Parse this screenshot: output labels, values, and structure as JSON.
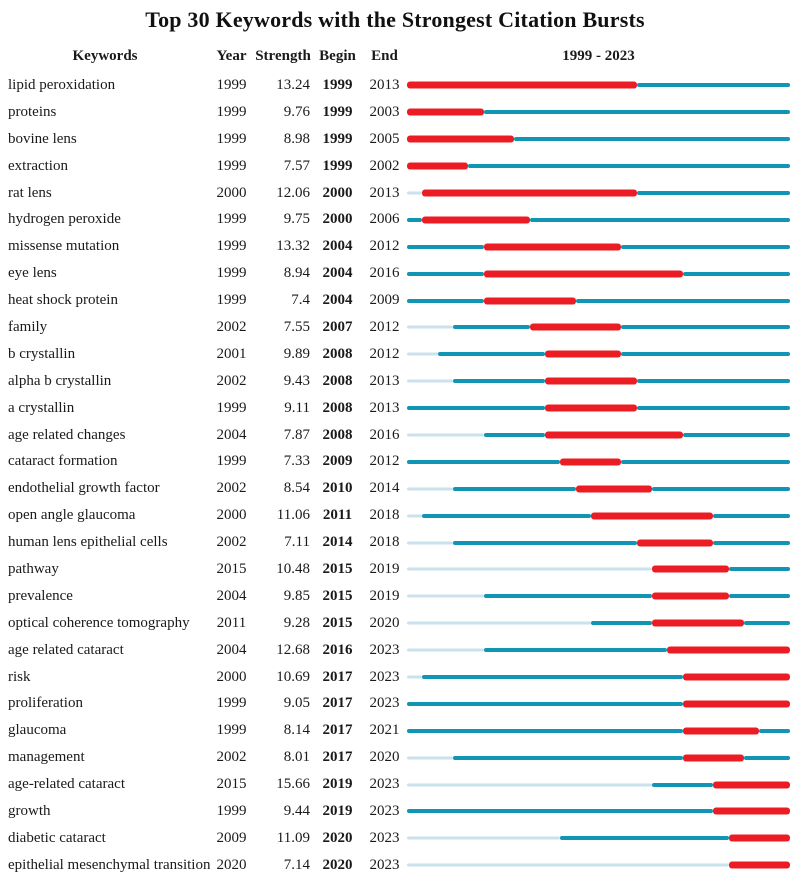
{
  "title": "Top 30 Keywords with the Strongest Citation Bursts",
  "columns": {
    "keywords": "Keywords",
    "year": "Year",
    "strength": "Strength",
    "begin": "Begin",
    "end": "End",
    "timeline": "1999 - 2023"
  },
  "colors": {
    "burst": "#ec1c24",
    "active": "#1095b5",
    "inactive": "#c9e2ec"
  },
  "chart_data": {
    "type": "table",
    "title": "Top 30 Keywords with the Strongest Citation Bursts",
    "columns": [
      "Keywords",
      "Year",
      "Strength",
      "Begin",
      "End",
      "1999 - 2023"
    ],
    "timeline_range": [
      1999,
      2023
    ],
    "legend": {
      "burst_color_meaning": "citation burst period (Begin–End)",
      "active_color_meaning": "keyword active, no burst",
      "inactive_color_meaning": "before keyword first appearance"
    },
    "rows": [
      {
        "keyword": "lipid peroxidation",
        "year": 1999,
        "strength": "13.24",
        "begin": 1999,
        "end": 2013
      },
      {
        "keyword": "proteins",
        "year": 1999,
        "strength": "9.76",
        "begin": 1999,
        "end": 2003
      },
      {
        "keyword": "bovine lens",
        "year": 1999,
        "strength": "8.98",
        "begin": 1999,
        "end": 2005
      },
      {
        "keyword": "extraction",
        "year": 1999,
        "strength": "7.57",
        "begin": 1999,
        "end": 2002
      },
      {
        "keyword": "rat lens",
        "year": 2000,
        "strength": "12.06",
        "begin": 2000,
        "end": 2013
      },
      {
        "keyword": "hydrogen peroxide",
        "year": 1999,
        "strength": "9.75",
        "begin": 2000,
        "end": 2006
      },
      {
        "keyword": "missense mutation",
        "year": 1999,
        "strength": "13.32",
        "begin": 2004,
        "end": 2012
      },
      {
        "keyword": "eye lens",
        "year": 1999,
        "strength": "8.94",
        "begin": 2004,
        "end": 2016
      },
      {
        "keyword": "heat shock protein",
        "year": 1999,
        "strength": "7.4",
        "begin": 2004,
        "end": 2009
      },
      {
        "keyword": "family",
        "year": 2002,
        "strength": "7.55",
        "begin": 2007,
        "end": 2012
      },
      {
        "keyword": "b crystallin",
        "year": 2001,
        "strength": "9.89",
        "begin": 2008,
        "end": 2012
      },
      {
        "keyword": "alpha b crystallin",
        "year": 2002,
        "strength": "9.43",
        "begin": 2008,
        "end": 2013
      },
      {
        "keyword": "a crystallin",
        "year": 1999,
        "strength": "9.11",
        "begin": 2008,
        "end": 2013
      },
      {
        "keyword": "age related changes",
        "year": 2004,
        "strength": "7.87",
        "begin": 2008,
        "end": 2016
      },
      {
        "keyword": "cataract formation",
        "year": 1999,
        "strength": "7.33",
        "begin": 2009,
        "end": 2012
      },
      {
        "keyword": "endothelial growth factor",
        "year": 2002,
        "strength": "8.54",
        "begin": 2010,
        "end": 2014
      },
      {
        "keyword": "open angle glaucoma",
        "year": 2000,
        "strength": "11.06",
        "begin": 2011,
        "end": 2018
      },
      {
        "keyword": "human lens epithelial cells",
        "year": 2002,
        "strength": "7.11",
        "begin": 2014,
        "end": 2018
      },
      {
        "keyword": "pathway",
        "year": 2015,
        "strength": "10.48",
        "begin": 2015,
        "end": 2019
      },
      {
        "keyword": "prevalence",
        "year": 2004,
        "strength": "9.85",
        "begin": 2015,
        "end": 2019
      },
      {
        "keyword": "optical coherence tomography",
        "year": 2011,
        "strength": "9.28",
        "begin": 2015,
        "end": 2020
      },
      {
        "keyword": "age related cataract",
        "year": 2004,
        "strength": "12.68",
        "begin": 2016,
        "end": 2023
      },
      {
        "keyword": "risk",
        "year": 2000,
        "strength": "10.69",
        "begin": 2017,
        "end": 2023
      },
      {
        "keyword": "proliferation",
        "year": 1999,
        "strength": "9.05",
        "begin": 2017,
        "end": 2023
      },
      {
        "keyword": "glaucoma",
        "year": 1999,
        "strength": "8.14",
        "begin": 2017,
        "end": 2021
      },
      {
        "keyword": "management",
        "year": 2002,
        "strength": "8.01",
        "begin": 2017,
        "end": 2020
      },
      {
        "keyword": "age-related cataract",
        "year": 2015,
        "strength": "15.66",
        "begin": 2019,
        "end": 2023
      },
      {
        "keyword": "growth",
        "year": 1999,
        "strength": "9.44",
        "begin": 2019,
        "end": 2023
      },
      {
        "keyword": "diabetic cataract",
        "year": 2009,
        "strength": "11.09",
        "begin": 2020,
        "end": 2023
      },
      {
        "keyword": "epithelial mesenchymal transition",
        "year": 2020,
        "strength": "7.14",
        "begin": 2020,
        "end": 2023
      }
    ]
  }
}
